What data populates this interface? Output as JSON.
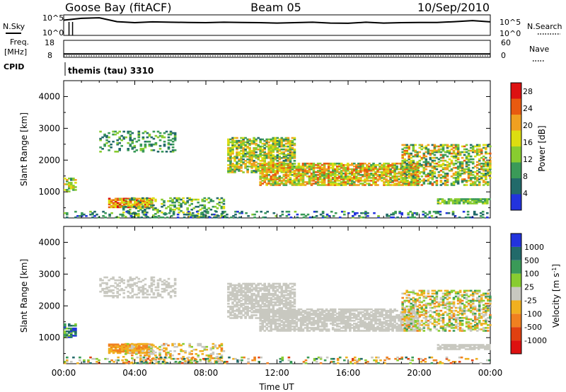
{
  "header": {
    "station": "Goose Bay (fitACF)",
    "beam": "Beam 05",
    "date": "10/Sep/2010"
  },
  "params": {
    "nsky_label": "N.Sky",
    "nsearch_label": "N.Search",
    "freq_label_1": "Freq.",
    "freq_label_2": "[MHz]",
    "nave_label": "Nave",
    "cpid_label": "CPID",
    "cpid_value": "themis (tau) 3310",
    "noise_ticks_left": [
      "10^5",
      "10^0"
    ],
    "noise_ticks_right": [
      "10^5",
      "10^0"
    ],
    "freq_ticks": [
      "18",
      "8"
    ],
    "nave_ticks": [
      "60",
      "0"
    ]
  },
  "colors": {
    "power_scale": [
      "#2233dd",
      "#226a6a",
      "#3a9a58",
      "#88cc30",
      "#dddd10",
      "#f0a020",
      "#e85a10",
      "#dd1111"
    ],
    "velocity_scale": [
      "#dd1111",
      "#e04010",
      "#f08020",
      "#f0b020",
      "#c8c8c0",
      "#88cc30",
      "#3a9a58",
      "#226a6a",
      "#2233dd"
    ],
    "gray": "#c8c8c0"
  },
  "chart_data": [
    {
      "type": "line",
      "panel": "noise",
      "x_unit": "hours UT",
      "xlim": [
        0,
        24
      ],
      "series": [
        {
          "name": "N.Sky",
          "x": [
            0,
            1,
            2,
            3,
            4,
            5,
            6,
            7,
            8,
            9,
            10,
            11,
            12,
            13,
            14,
            15,
            16,
            17,
            18,
            19,
            20,
            21,
            22,
            23,
            24
          ],
          "y_frac": [
            0.74,
            0.83,
            0.86,
            0.67,
            0.62,
            0.66,
            0.64,
            0.63,
            0.62,
            0.64,
            0.63,
            0.62,
            0.6,
            0.62,
            0.64,
            0.6,
            0.59,
            0.64,
            0.6,
            0.62,
            0.63,
            0.63,
            0.67,
            0.72,
            0.66
          ]
        }
      ]
    },
    {
      "type": "line",
      "panel": "frequency",
      "x_unit": "hours UT",
      "xlim": [
        0,
        24
      ],
      "series": [
        {
          "name": "Freq.",
          "x": [
            0,
            24
          ],
          "y": [
            10,
            10
          ]
        }
      ]
    },
    {
      "type": "heatmap",
      "panel": "power",
      "xlabel": "Time UT",
      "ylabel": "Slant Range [km]",
      "xlim": [
        0,
        24
      ],
      "ylim": [
        180,
        4500
      ],
      "x_ticks": [
        "00:00",
        "04:00",
        "08:00",
        "12:00",
        "16:00",
        "20:00",
        "00:00"
      ],
      "y_ticks": [
        1000,
        2000,
        3000,
        4000
      ],
      "colorbar": {
        "label": "Power [dB]",
        "ticks": [
          4,
          8,
          12,
          16,
          20,
          24,
          28
        ],
        "range": [
          0,
          30
        ]
      },
      "regions": [
        {
          "t0": 0.0,
          "t1": 0.7,
          "r0": 1000,
          "r1": 1450,
          "lo": 6,
          "hi": 22,
          "density": 0.6
        },
        {
          "t0": 2.0,
          "t1": 6.3,
          "r0": 2250,
          "r1": 2900,
          "lo": 4,
          "hi": 14,
          "density": 0.3
        },
        {
          "t0": 2.5,
          "t1": 5.0,
          "r0": 500,
          "r1": 800,
          "lo": 14,
          "hi": 30,
          "density": 0.85
        },
        {
          "t0": 3.3,
          "t1": 9.0,
          "r0": 200,
          "r1": 800,
          "lo": 4,
          "hi": 18,
          "density": 0.3
        },
        {
          "t0": 9.2,
          "t1": 13.0,
          "r0": 1600,
          "r1": 2700,
          "lo": 6,
          "hi": 22,
          "density": 0.7
        },
        {
          "t0": 11.0,
          "t1": 20.0,
          "r0": 1200,
          "r1": 1900,
          "lo": 10,
          "hi": 26,
          "density": 0.75
        },
        {
          "t0": 19.0,
          "t1": 24.0,
          "r0": 1200,
          "r1": 2500,
          "lo": 6,
          "hi": 24,
          "density": 0.5
        },
        {
          "t0": 21.0,
          "t1": 24.0,
          "r0": 620,
          "r1": 780,
          "lo": 8,
          "hi": 16,
          "density": 0.8
        },
        {
          "t0": 0.0,
          "t1": 24.0,
          "r0": 180,
          "r1": 380,
          "lo": 2,
          "hi": 12,
          "density": 0.25
        }
      ]
    },
    {
      "type": "heatmap",
      "panel": "velocity",
      "xlabel": "Time UT",
      "ylabel": "Slant Range [km]",
      "xlim": [
        0,
        24
      ],
      "ylim": [
        180,
        4500
      ],
      "x_ticks": [
        "00:00",
        "04:00",
        "08:00",
        "12:00",
        "16:00",
        "20:00",
        "00:00"
      ],
      "y_ticks": [
        1000,
        2000,
        3000,
        4000
      ],
      "colorbar": {
        "label": "Velocity [m s^-1]",
        "ticks": [
          "1000",
          "500",
          "100",
          "25",
          "-25",
          "-100",
          "-500",
          "-1000"
        ]
      },
      "regions": [
        {
          "t0": 0.0,
          "t1": 0.7,
          "r0": 1000,
          "r1": 1450,
          "lo": 5,
          "hi": 8,
          "density": 0.6
        },
        {
          "t0": 2.0,
          "t1": 6.3,
          "r0": 2250,
          "r1": 2900,
          "lo": 4,
          "hi": 4,
          "density": 0.4
        },
        {
          "t0": 2.5,
          "t1": 5.0,
          "r0": 500,
          "r1": 800,
          "lo": 2,
          "hi": 3,
          "density": 0.85
        },
        {
          "t0": 3.3,
          "t1": 9.0,
          "r0": 200,
          "r1": 800,
          "lo": 2,
          "hi": 5,
          "density": 0.3
        },
        {
          "t0": 9.2,
          "t1": 13.0,
          "r0": 1600,
          "r1": 2700,
          "lo": 4,
          "hi": 4,
          "density": 0.7
        },
        {
          "t0": 11.0,
          "t1": 20.0,
          "r0": 1200,
          "r1": 1900,
          "lo": 4,
          "hi": 4,
          "density": 0.75
        },
        {
          "t0": 19.0,
          "t1": 24.0,
          "r0": 1200,
          "r1": 2500,
          "lo": 2,
          "hi": 6,
          "density": 0.5
        },
        {
          "t0": 21.0,
          "t1": 24.0,
          "r0": 620,
          "r1": 780,
          "lo": 4,
          "hi": 4,
          "density": 0.8
        },
        {
          "t0": 0.0,
          "t1": 24.0,
          "r0": 180,
          "r1": 380,
          "lo": 1,
          "hi": 7,
          "density": 0.2
        }
      ]
    }
  ]
}
